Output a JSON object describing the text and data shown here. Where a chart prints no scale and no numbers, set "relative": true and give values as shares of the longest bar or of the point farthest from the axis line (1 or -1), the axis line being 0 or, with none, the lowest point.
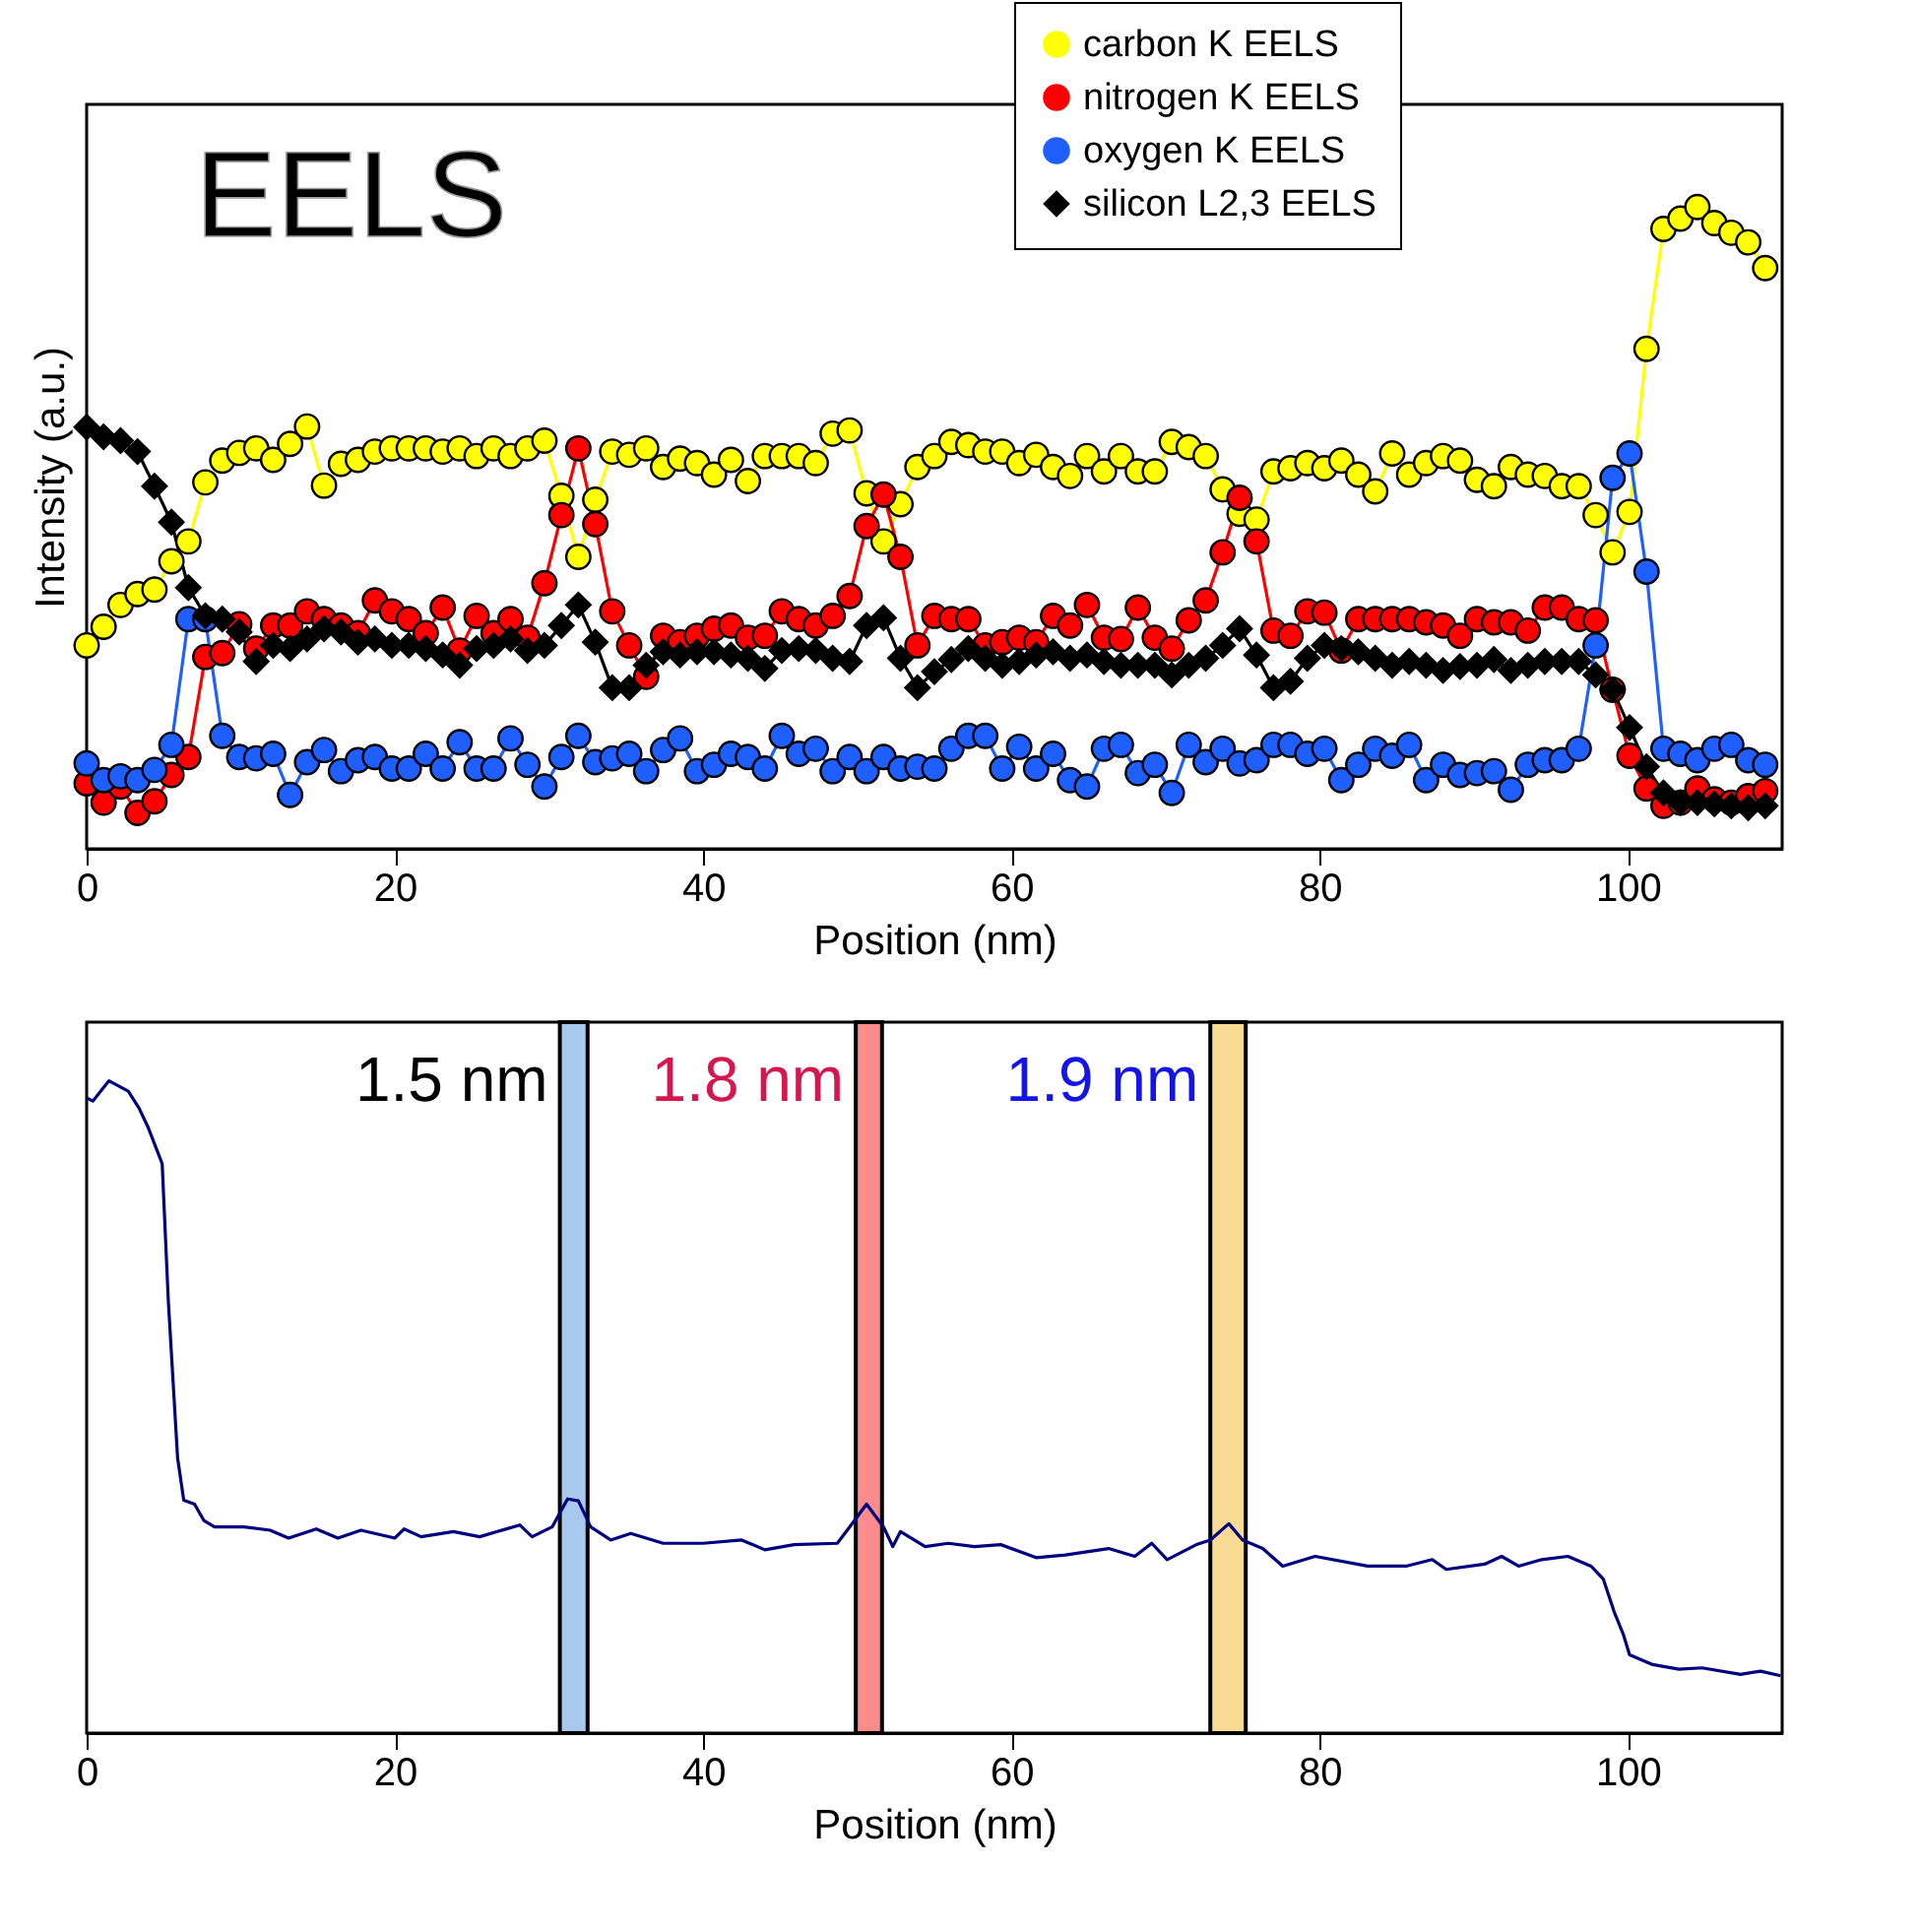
{
  "chart_data": [
    {
      "type": "line",
      "xlabel": "Position (nm)",
      "ylabel": "Intensity (a.u.)",
      "annotations": [
        "EELS"
      ],
      "relative": true,
      "legend": "top right",
      "tick_labels": "x",
      "xlim": [
        0,
        110
      ],
      "xticks": [
        0,
        20,
        40,
        60,
        80,
        100
      ],
      "x": [
        0,
        1.1,
        2.2,
        3.3,
        4.4,
        5.5,
        6.6,
        7.7,
        8.8,
        9.9,
        11,
        12.1,
        13.2,
        14.3,
        15.4,
        16.5,
        17.6,
        18.7,
        19.8,
        20.9,
        22,
        23.1,
        24.2,
        25.3,
        26.4,
        27.5,
        28.6,
        29.7,
        30.8,
        31.9,
        33,
        34.1,
        35.2,
        36.3,
        37.4,
        38.5,
        39.6,
        40.7,
        41.8,
        42.9,
        44,
        45.1,
        46.2,
        47.3,
        48.4,
        49.5,
        50.6,
        51.7,
        52.8,
        53.9,
        55,
        56.1,
        57.2,
        58.3,
        59.4,
        60.5,
        61.6,
        62.7,
        63.8,
        64.9,
        66,
        67.1,
        68.2,
        69.3,
        70.4,
        71.5,
        72.6,
        73.7,
        74.8,
        75.9,
        77,
        78.1,
        79.2,
        80.3,
        81.4,
        82.5,
        83.6,
        84.7,
        85.8,
        86.9,
        88,
        89.1,
        90.2,
        91.3,
        92.4,
        93.5,
        94.6,
        95.7,
        96.8,
        97.9,
        99,
        100.1,
        101.2,
        102.3,
        103.4,
        104.5,
        105.6,
        106.7,
        107.8,
        108.9
      ],
      "series": [
        {
          "name": "carbon K EELS",
          "color": "#ffff00",
          "marker": "circle",
          "values": [
            0.317,
            0.346,
            0.38,
            0.397,
            0.404,
            0.448,
            0.479,
            0.571,
            0.605,
            0.617,
            0.624,
            0.606,
            0.631,
            0.658,
            0.566,
            0.6,
            0.606,
            0.619,
            0.624,
            0.624,
            0.624,
            0.619,
            0.624,
            0.612,
            0.624,
            0.612,
            0.624,
            0.636,
            0.55,
            0.455,
            0.544,
            0.619,
            0.614,
            0.624,
            0.595,
            0.608,
            0.601,
            0.583,
            0.606,
            0.573,
            0.612,
            0.612,
            0.612,
            0.601,
            0.647,
            0.652,
            0.554,
            0.479,
            0.537,
            0.595,
            0.612,
            0.634,
            0.629,
            0.619,
            0.619,
            0.601,
            0.614,
            0.595,
            0.581,
            0.612,
            0.588,
            0.612,
            0.588,
            0.588,
            0.634,
            0.626,
            0.612,
            0.56,
            0.522,
            0.513,
            0.588,
            0.593,
            0.601,
            0.593,
            0.605,
            0.583,
            0.557,
            0.616,
            0.583,
            0.601,
            0.612,
            0.605,
            0.575,
            0.565,
            0.595,
            0.583,
            0.581,
            0.565,
            0.565,
            0.52,
            0.462,
            0.525,
            0.779,
            0.966,
            0.982,
            1.0,
            0.975,
            0.96,
            0.945,
            0.905
          ]
        },
        {
          "name": "nitrogen K EELS",
          "color": "#ff0000",
          "marker": "circle",
          "values": [
            0.102,
            0.072,
            0.097,
            0.056,
            0.074,
            0.115,
            0.143,
            0.299,
            0.305,
            0.35,
            0.312,
            0.348,
            0.348,
            0.37,
            0.358,
            0.348,
            0.336,
            0.387,
            0.37,
            0.358,
            0.336,
            0.376,
            0.309,
            0.363,
            0.336,
            0.358,
            0.329,
            0.414,
            0.52,
            0.624,
            0.506,
            0.37,
            0.317,
            0.268,
            0.332,
            0.322,
            0.332,
            0.343,
            0.348,
            0.329,
            0.332,
            0.37,
            0.358,
            0.348,
            0.363,
            0.394,
            0.503,
            0.552,
            0.455,
            0.317,
            0.363,
            0.358,
            0.358,
            0.317,
            0.322,
            0.329,
            0.322,
            0.363,
            0.348,
            0.38,
            0.329,
            0.327,
            0.376,
            0.329,
            0.312,
            0.356,
            0.387,
            0.462,
            0.547,
            0.479,
            0.34,
            0.332,
            0.37,
            0.368,
            0.309,
            0.358,
            0.358,
            0.358,
            0.358,
            0.353,
            0.348,
            0.332,
            0.358,
            0.353,
            0.353,
            0.34,
            0.376,
            0.376,
            0.358,
            0.356,
            0.248,
            0.145,
            0.094,
            0.067,
            0.072,
            0.094,
            0.077,
            0.072,
            0.082,
            0.09
          ]
        },
        {
          "name": "oxygen K EELS",
          "color": "#1f5fff",
          "marker": "circle",
          "values": [
            0.133,
            0.107,
            0.113,
            0.107,
            0.123,
            0.162,
            0.358,
            0.358,
            0.176,
            0.143,
            0.141,
            0.148,
            0.084,
            0.135,
            0.154,
            0.121,
            0.138,
            0.143,
            0.125,
            0.125,
            0.148,
            0.125,
            0.166,
            0.125,
            0.125,
            0.172,
            0.131,
            0.097,
            0.143,
            0.176,
            0.135,
            0.141,
            0.148,
            0.121,
            0.154,
            0.172,
            0.121,
            0.131,
            0.148,
            0.143,
            0.125,
            0.176,
            0.148,
            0.156,
            0.121,
            0.143,
            0.121,
            0.143,
            0.125,
            0.128,
            0.125,
            0.156,
            0.176,
            0.176,
            0.125,
            0.159,
            0.125,
            0.148,
            0.107,
            0.097,
            0.156,
            0.162,
            0.118,
            0.131,
            0.087,
            0.162,
            0.135,
            0.156,
            0.133,
            0.138,
            0.162,
            0.162,
            0.148,
            0.156,
            0.107,
            0.131,
            0.156,
            0.145,
            0.162,
            0.107,
            0.131,
            0.115,
            0.118,
            0.121,
            0.092,
            0.131,
            0.138,
            0.138,
            0.156,
            0.317,
            0.578,
            0.616,
            0.432,
            0.156,
            0.148,
            0.138,
            0.156,
            0.162,
            0.138,
            0.131
          ]
        },
        {
          "name": "silicon L2,3 EELS",
          "color": "#000000",
          "marker": "diamond",
          "values": [
            0.657,
            0.642,
            0.636,
            0.619,
            0.565,
            0.509,
            0.407,
            0.363,
            0.358,
            0.338,
            0.292,
            0.317,
            0.312,
            0.327,
            0.343,
            0.338,
            0.322,
            0.327,
            0.317,
            0.317,
            0.312,
            0.302,
            0.286,
            0.312,
            0.317,
            0.327,
            0.309,
            0.317,
            0.348,
            0.38,
            0.322,
            0.251,
            0.251,
            0.286,
            0.307,
            0.302,
            0.307,
            0.307,
            0.302,
            0.297,
            0.281,
            0.309,
            0.312,
            0.309,
            0.297,
            0.292,
            0.348,
            0.36,
            0.297,
            0.251,
            0.276,
            0.295,
            0.312,
            0.297,
            0.286,
            0.292,
            0.302,
            0.307,
            0.297,
            0.302,
            0.292,
            0.286,
            0.286,
            0.286,
            0.271,
            0.286,
            0.297,
            0.317,
            0.343,
            0.302,
            0.251,
            0.261,
            0.297,
            0.317,
            0.312,
            0.307,
            0.297,
            0.286,
            0.292,
            0.286,
            0.278,
            0.284,
            0.286,
            0.295,
            0.278,
            0.286,
            0.292,
            0.292,
            0.292,
            0.271,
            0.248,
            0.189,
            0.128,
            0.087,
            0.072,
            0.072,
            0.07,
            0.067,
            0.064,
            0.067
          ]
        }
      ]
    },
    {
      "type": "line",
      "xlabel": "Position (nm)",
      "relative": true,
      "tick_labels": "x",
      "xlim": [
        0,
        110
      ],
      "xticks": [
        0,
        20,
        40,
        60,
        80,
        100
      ],
      "x": [
        0,
        0.4,
        1.45,
        2.7,
        3.4,
        4,
        4.9,
        5.3,
        5.9,
        6.3,
        7,
        7.6,
        8.3,
        10.2,
        11.9,
        13.1,
        14.9,
        16.3,
        17.8,
        20,
        20.6,
        21.7,
        23.8,
        25.5,
        28.1,
        28.9,
        30.2,
        31.2,
        31.9,
        32.7,
        34,
        35.3,
        37.4,
        40,
        42.5,
        44,
        45.9,
        48.7,
        49.5,
        50.6,
        51.7,
        52.3,
        52.8,
        54.4,
        55.9,
        57.6,
        59.3,
        61.6,
        63.5,
        66.3,
        68,
        69.1,
        70.1,
        72,
        72.9,
        74.1,
        75,
        76.3,
        77.6,
        79.7,
        83.1,
        85.6,
        87.3,
        88.2,
        90.7,
        91.8,
        92.9,
        94.4,
        96.1,
        97.6,
        98.4,
        99.1,
        99.7,
        100.1,
        101.6,
        103.3,
        104.8,
        107.3,
        108.6,
        109.9
      ],
      "series": [
        {
          "color": "#000080",
          "values": [
            0.974,
            0.969,
            1.0,
            0.984,
            0.958,
            0.928,
            0.873,
            0.662,
            0.422,
            0.357,
            0.351,
            0.326,
            0.316,
            0.316,
            0.311,
            0.299,
            0.313,
            0.299,
            0.311,
            0.299,
            0.313,
            0.301,
            0.309,
            0.301,
            0.319,
            0.301,
            0.316,
            0.359,
            0.356,
            0.316,
            0.296,
            0.306,
            0.291,
            0.291,
            0.296,
            0.281,
            0.289,
            0.291,
            0.316,
            0.351,
            0.316,
            0.286,
            0.309,
            0.286,
            0.291,
            0.286,
            0.289,
            0.269,
            0.273,
            0.283,
            0.271,
            0.291,
            0.266,
            0.289,
            0.296,
            0.321,
            0.296,
            0.283,
            0.256,
            0.271,
            0.256,
            0.256,
            0.266,
            0.251,
            0.259,
            0.271,
            0.256,
            0.266,
            0.271,
            0.256,
            0.236,
            0.186,
            0.151,
            0.12,
            0.105,
            0.098,
            0.1,
            0.09,
            0.095,
            0.088
          ]
        }
      ],
      "bands": [
        {
          "axis": "x",
          "from": 30.7,
          "to": 32.5,
          "label": "1.5 nm",
          "color": "#a8c8ee"
        },
        {
          "axis": "x",
          "from": 49.9,
          "to": 51.6,
          "label": "1.8 nm",
          "color": "#ff8c8c"
        },
        {
          "axis": "x",
          "from": 72.9,
          "to": 75.2,
          "label": "1.9 nm",
          "color": "#fadb94"
        }
      ]
    }
  ]
}
